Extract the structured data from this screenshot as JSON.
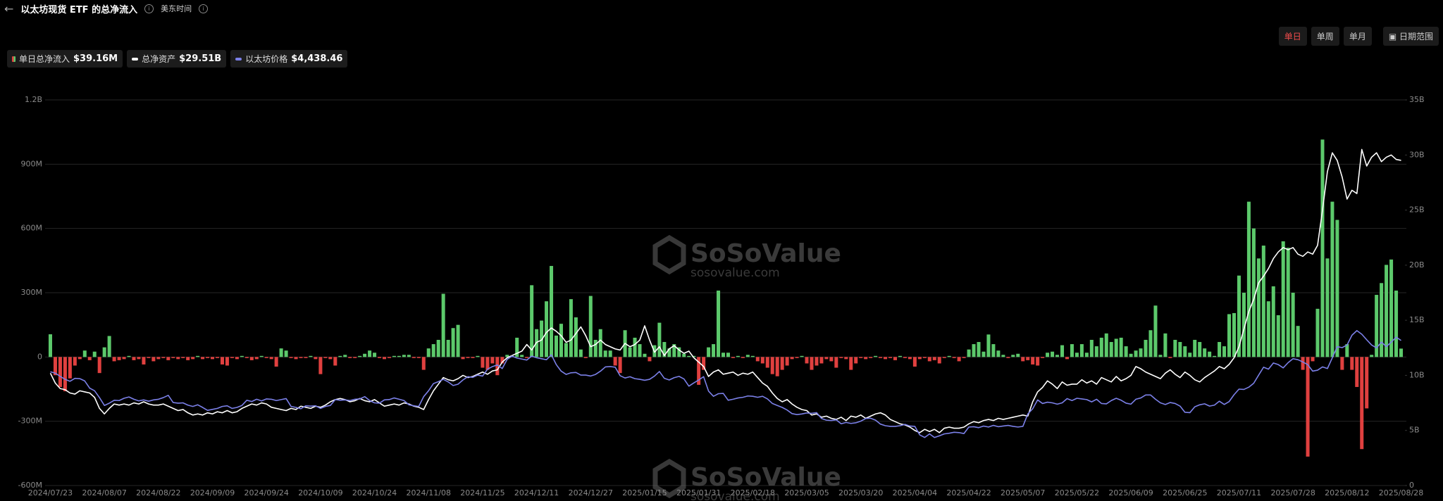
{
  "header": {
    "title": "以太坊现货 ETF 的总净流入",
    "timezone": "美东时间"
  },
  "controls": {
    "periods": [
      "单日",
      "单周",
      "单月"
    ],
    "active": 0,
    "date_range": "日期范围"
  },
  "watermark": {
    "brand": "SoSoValue",
    "site": "sosovalue.com"
  },
  "chart_data": {
    "type": "bar",
    "grid": true,
    "categories": [
      "2024/07/23",
      null,
      null,
      null,
      null,
      null,
      null,
      null,
      null,
      null,
      null,
      "2024/08/07",
      null,
      null,
      null,
      null,
      null,
      null,
      null,
      null,
      null,
      null,
      "2024/08/22",
      null,
      null,
      null,
      null,
      null,
      null,
      null,
      null,
      null,
      null,
      "2024/09/09",
      null,
      null,
      null,
      null,
      null,
      null,
      null,
      null,
      null,
      null,
      "2024/09/24",
      null,
      null,
      null,
      null,
      null,
      null,
      null,
      null,
      null,
      null,
      "2024/10/09",
      null,
      null,
      null,
      null,
      null,
      null,
      null,
      null,
      null,
      null,
      "2024/10/24",
      null,
      null,
      null,
      null,
      null,
      null,
      null,
      null,
      null,
      null,
      "2024/11/08",
      null,
      null,
      null,
      null,
      null,
      null,
      null,
      null,
      null,
      null,
      "2024/11/25",
      null,
      null,
      null,
      null,
      null,
      null,
      null,
      null,
      null,
      null,
      "2024/12/11",
      null,
      null,
      null,
      null,
      null,
      null,
      null,
      null,
      null,
      null,
      "2024/12/27",
      null,
      null,
      null,
      null,
      null,
      null,
      null,
      null,
      null,
      null,
      "2025/01/15",
      null,
      null,
      null,
      null,
      null,
      null,
      null,
      null,
      null,
      null,
      "2025/01/31",
      null,
      null,
      null,
      null,
      null,
      null,
      null,
      null,
      null,
      null,
      "2025/02/18",
      null,
      null,
      null,
      null,
      null,
      null,
      null,
      null,
      null,
      null,
      "2025/03/05",
      null,
      null,
      null,
      null,
      null,
      null,
      null,
      null,
      null,
      null,
      "2025/03/20",
      null,
      null,
      null,
      null,
      null,
      null,
      null,
      null,
      null,
      null,
      "2025/04/04",
      null,
      null,
      null,
      null,
      null,
      null,
      null,
      null,
      null,
      null,
      "2025/04/22",
      null,
      null,
      null,
      null,
      null,
      null,
      null,
      null,
      null,
      null,
      "2025/05/07",
      null,
      null,
      null,
      null,
      null,
      null,
      null,
      null,
      null,
      null,
      "2025/05/22",
      null,
      null,
      null,
      null,
      null,
      null,
      null,
      null,
      null,
      null,
      "2025/06/09",
      null,
      null,
      null,
      null,
      null,
      null,
      null,
      null,
      null,
      null,
      "2025/06/25",
      null,
      null,
      null,
      null,
      null,
      null,
      null,
      null,
      null,
      null,
      "2025/07/11",
      null,
      null,
      null,
      null,
      null,
      null,
      null,
      null,
      null,
      null,
      "2025/07/28",
      null,
      null,
      null,
      null,
      null,
      null,
      null,
      null,
      null,
      null,
      "2025/08/12",
      null,
      null,
      null,
      null,
      null,
      null,
      null,
      null,
      null,
      null,
      "2025/08/28"
    ],
    "ylim": [
      -600,
      1200
    ],
    "yticks": [
      {
        "value": -600,
        "label": "-600M"
      },
      {
        "value": -300,
        "label": "-300M"
      },
      0,
      {
        "value": 300,
        "label": "300M"
      },
      {
        "value": 600,
        "label": "600M"
      },
      {
        "value": 900,
        "label": "900M"
      },
      {
        "value": 1200,
        "label": "1.2B"
      }
    ],
    "y2lim": [
      0,
      35
    ],
    "y2ticks": [
      0,
      {
        "value": 5,
        "label": "5B"
      },
      {
        "value": 10,
        "label": "10B"
      },
      {
        "value": 15,
        "label": "15B"
      },
      {
        "value": 20,
        "label": "20B"
      },
      {
        "value": 25,
        "label": "25B"
      },
      {
        "value": 30,
        "label": "30B"
      },
      {
        "value": 35,
        "label": "35B"
      }
    ],
    "y3lim": [
      0,
      11800
    ],
    "series": [
      {
        "name": "单日总净流入",
        "legend_value": "$39.16M",
        "type": "bar",
        "axis": "y",
        "color": "#5cc96b",
        "negative_color": "#e0403f",
        "values": [
          106,
          -85,
          -140,
          -160,
          -100,
          -40,
          -10,
          30,
          -15,
          25,
          -75,
          45,
          98,
          -20,
          -15,
          -10,
          5,
          -15,
          -10,
          -35,
          -5,
          -20,
          -10,
          -5,
          -15,
          -5,
          -10,
          -5,
          -15,
          -10,
          5,
          -10,
          -5,
          -10,
          -5,
          -35,
          -40,
          -5,
          -10,
          5,
          -5,
          -15,
          -10,
          5,
          -5,
          -10,
          -45,
          40,
          30,
          -5,
          -10,
          -5,
          -5,
          5,
          -10,
          -80,
          -5,
          -10,
          -40,
          5,
          10,
          -5,
          -5,
          5,
          15,
          30,
          20,
          -5,
          -10,
          -5,
          5,
          5,
          10,
          10,
          -5,
          -5,
          -60,
          40,
          60,
          80,
          295,
          80,
          135,
          150,
          -10,
          -5,
          -5,
          5,
          -50,
          -60,
          -30,
          -85,
          -30,
          10,
          5,
          90,
          10,
          -5,
          335,
          130,
          170,
          260,
          425,
          100,
          155,
          65,
          270,
          185,
          35,
          -5,
          285,
          80,
          130,
          30,
          30,
          -40,
          -75,
          125,
          45,
          90,
          60,
          15,
          -20,
          55,
          160,
          70,
          40,
          60,
          45,
          15,
          5,
          5,
          -130,
          -60,
          45,
          60,
          310,
          20,
          20,
          -5,
          5,
          -5,
          10,
          5,
          -20,
          -30,
          -50,
          -80,
          -90,
          -60,
          -40,
          -10,
          -5,
          5,
          -30,
          -60,
          -40,
          -30,
          -10,
          -20,
          -50,
          -5,
          -10,
          -60,
          -30,
          -5,
          -10,
          -5,
          5,
          -5,
          -10,
          -5,
          -15,
          5,
          -5,
          -10,
          -45,
          -10,
          -5,
          -20,
          -15,
          -30,
          -5,
          5,
          -5,
          -20,
          -5,
          35,
          60,
          70,
          25,
          105,
          60,
          30,
          10,
          -5,
          10,
          15,
          -20,
          -15,
          -35,
          -40,
          -5,
          20,
          25,
          10,
          55,
          -10,
          60,
          20,
          60,
          20,
          80,
          50,
          90,
          110,
          70,
          85,
          90,
          50,
          15,
          30,
          40,
          80,
          125,
          240,
          10,
          110,
          -5,
          80,
          70,
          50,
          20,
          80,
          70,
          40,
          25,
          5,
          70,
          50,
          200,
          205,
          380,
          300,
          725,
          600,
          460,
          520,
          260,
          330,
          195,
          540,
          510,
          300,
          145,
          -60,
          -465,
          -20,
          225,
          1015,
          460,
          725,
          640,
          -60,
          60,
          -60,
          -140,
          -430,
          -240,
          10,
          290,
          345,
          430,
          455,
          310,
          39.16
        ]
      },
      {
        "name": "总净资产",
        "legend_value": "$29.51B",
        "type": "line",
        "axis": "y2",
        "color": "#ffffff",
        "values": [
          10.2,
          9.3,
          8.8,
          8.7,
          8.4,
          8.3,
          8.6,
          8.5,
          8.4,
          8.0,
          7.0,
          6.5,
          7.0,
          7.4,
          7.3,
          7.4,
          7.3,
          7.5,
          7.4,
          7.6,
          7.4,
          7.3,
          7.3,
          7.4,
          7.2,
          7.0,
          6.8,
          6.9,
          6.6,
          6.4,
          6.5,
          6.4,
          6.6,
          6.5,
          6.7,
          6.6,
          6.8,
          6.6,
          6.7,
          7.0,
          7.2,
          7.4,
          7.3,
          7.5,
          7.4,
          7.1,
          7.0,
          6.9,
          6.8,
          7.0,
          6.9,
          7.2,
          7.1,
          7.0,
          7.2,
          7.1,
          7.3,
          7.6,
          7.8,
          7.9,
          7.8,
          7.6,
          7.7,
          7.9,
          7.7,
          7.6,
          7.8,
          7.5,
          7.2,
          7.3,
          7.4,
          7.3,
          7.5,
          7.4,
          7.2,
          7.1,
          6.9,
          7.8,
          8.6,
          9.2,
          9.8,
          9.6,
          9.5,
          9.7,
          10.0,
          9.8,
          9.9,
          10.1,
          10.3,
          10.1,
          10.4,
          10.5,
          11.2,
          11.6,
          11.8,
          12.0,
          12.2,
          12.8,
          12.3,
          13.0,
          13.2,
          13.9,
          14.3,
          14.0,
          13.6,
          13.0,
          13.2,
          13.8,
          14.4,
          13.6,
          12.6,
          12.8,
          13.2,
          12.8,
          12.6,
          12.4,
          12.3,
          12.9,
          12.6,
          12.8,
          13.2,
          14.5,
          13.2,
          12.1,
          12.6,
          11.8,
          12.4,
          12.7,
          12.3,
          12.0,
          12.2,
          11.6,
          11.2,
          10.8,
          9.9,
          10.3,
          10.5,
          10.1,
          10.2,
          10.3,
          10.0,
          10.2,
          10.1,
          10.3,
          9.8,
          9.3,
          9.0,
          8.4,
          7.9,
          7.6,
          7.8,
          7.4,
          7.1,
          6.9,
          6.8,
          6.4,
          6.5,
          6.2,
          6.3,
          6.1,
          6.0,
          6.2,
          5.9,
          6.3,
          6.2,
          6.4,
          6.1,
          6.3,
          6.5,
          6.6,
          6.4,
          6.0,
          5.8,
          5.6,
          5.5,
          5.3,
          5.0,
          4.8,
          5.1,
          4.9,
          5.1,
          4.8,
          5.2,
          5.3,
          5.2,
          5.2,
          5.3,
          5.6,
          5.8,
          5.7,
          5.9,
          6.0,
          5.9,
          6.1,
          6.0,
          6.1,
          6.2,
          6.3,
          6.4,
          6.3,
          7.6,
          8.5,
          8.9,
          9.5,
          9.2,
          8.8,
          9.4,
          9.1,
          9.2,
          9.2,
          9.6,
          9.3,
          9.5,
          9.2,
          9.8,
          9.6,
          9.4,
          9.9,
          9.5,
          9.7,
          10.0,
          10.8,
          10.6,
          10.3,
          10.1,
          9.9,
          9.7,
          10.2,
          10.5,
          10.1,
          9.8,
          10.3,
          10.0,
          9.6,
          9.4,
          9.8,
          10.1,
          10.4,
          10.8,
          10.6,
          11.0,
          11.6,
          12.6,
          14.2,
          15.8,
          16.9,
          18.4,
          19.0,
          19.7,
          20.6,
          21.2,
          21.6,
          21.4,
          21.6,
          21.0,
          20.8,
          21.2,
          21.0,
          21.8,
          25.0,
          28.5,
          30.2,
          29.5,
          28.0,
          26.0,
          26.8,
          26.5,
          30.5,
          29.0,
          29.8,
          30.2,
          29.4,
          29.8,
          30.0,
          29.6,
          29.51
        ]
      },
      {
        "name": "以太坊价格",
        "legend_value": "$4,438.46",
        "type": "line",
        "axis": "y3",
        "color": "#7b80e8",
        "values": [
          3480,
          3440,
          3340,
          3250,
          3190,
          3280,
          3270,
          3200,
          2980,
          2900,
          2690,
          2450,
          2520,
          2610,
          2600,
          2670,
          2710,
          2640,
          2590,
          2620,
          2580,
          2620,
          2640,
          2690,
          2760,
          2540,
          2520,
          2530,
          2460,
          2420,
          2470,
          2390,
          2300,
          2330,
          2360,
          2420,
          2440,
          2360,
          2390,
          2450,
          2610,
          2570,
          2640,
          2590,
          2650,
          2640,
          2600,
          2630,
          2660,
          2420,
          2390,
          2350,
          2440,
          2430,
          2440,
          2360,
          2420,
          2450,
          2630,
          2610,
          2620,
          2600,
          2640,
          2650,
          2720,
          2600,
          2530,
          2520,
          2620,
          2630,
          2680,
          2640,
          2600,
          2470,
          2440,
          2420,
          2720,
          2900,
          3120,
          3180,
          3250,
          3170,
          3060,
          3100,
          3230,
          3330,
          3310,
          3380,
          3350,
          3560,
          3640,
          3690,
          3580,
          3860,
          3960,
          3900,
          3870,
          3840,
          3960,
          3910,
          3880,
          3850,
          4000,
          3700,
          3500,
          3400,
          3450,
          3460,
          3380,
          3380,
          3350,
          3400,
          3500,
          3630,
          3640,
          3620,
          3360,
          3290,
          3330,
          3270,
          3250,
          3220,
          3250,
          3350,
          3490,
          3280,
          3230,
          3300,
          3340,
          3260,
          3040,
          3140,
          3230,
          3330,
          2890,
          2730,
          2810,
          2820,
          2610,
          2640,
          2680,
          2700,
          2740,
          2730,
          2700,
          2730,
          2650,
          2510,
          2450,
          2390,
          2310,
          2200,
          2170,
          2190,
          2220,
          2210,
          2230,
          2050,
          2000,
          1990,
          2010,
          1890,
          1930,
          1900,
          1920,
          1970,
          2050,
          2060,
          2000,
          1880,
          1830,
          1810,
          1810,
          1830,
          1870,
          1820,
          1810,
          1550,
          1470,
          1580,
          1470,
          1520,
          1580,
          1600,
          1630,
          1620,
          1590,
          1790,
          1800,
          1770,
          1820,
          1790,
          1840,
          1800,
          1820,
          1840,
          1810,
          1790,
          1810,
          2190,
          2350,
          2620,
          2510,
          2550,
          2530,
          2490,
          2530,
          2660,
          2600,
          2670,
          2650,
          2630,
          2560,
          2640,
          2510,
          2500,
          2600,
          2670,
          2610,
          2520,
          2490,
          2640,
          2680,
          2770,
          2770,
          2640,
          2530,
          2480,
          2540,
          2510,
          2430,
          2240,
          2230,
          2410,
          2470,
          2500,
          2430,
          2460,
          2580,
          2480,
          2570,
          2780,
          2950,
          2940,
          3010,
          3130,
          3380,
          3620,
          3560,
          3750,
          3700,
          3600,
          3760,
          3880,
          3850,
          3780,
          3700,
          3500,
          3530,
          3630,
          3580,
          3910,
          4250,
          4220,
          4300,
          4600,
          4740,
          4630,
          4460,
          4300,
          4210,
          4390,
          4250,
          4390,
          4540,
          4438.46
        ]
      }
    ]
  }
}
